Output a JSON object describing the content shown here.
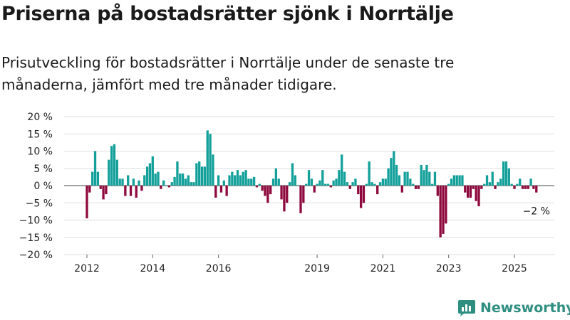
{
  "title": "Priserna på bostadsrätter sjönk i Norrtälje",
  "subtitle": "Prisutveckling för bostadsrätter i Norrtälje under de senaste tre månaderna, jämfört med tre månader tidigare.",
  "brand": {
    "name": "Newsworthy"
  },
  "colors": {
    "positive": "#13a09a",
    "negative": "#8e0a3e",
    "grid": "#dddddd",
    "brand": "#2e8e80"
  },
  "chart_data": {
    "type": "bar",
    "ylim": [
      -20,
      20
    ],
    "grid": true,
    "yticks": [
      {
        "value": 20,
        "label": "20 %"
      },
      {
        "value": 15,
        "label": "15 %"
      },
      {
        "value": 10,
        "label": "10 %"
      },
      {
        "value": 5,
        "label": "5 %"
      },
      {
        "value": 0,
        "label": "0 %"
      },
      {
        "value": -5,
        "label": "−5 %"
      },
      {
        "value": -10,
        "label": "−10 %"
      },
      {
        "value": -15,
        "label": "−15 %"
      },
      {
        "value": -20,
        "label": "−20 %"
      }
    ],
    "xticks": [
      {
        "value": 2012,
        "label": "2012"
      },
      {
        "value": 2014,
        "label": "2014"
      },
      {
        "value": 2016,
        "label": "2016"
      },
      {
        "value": 2019,
        "label": "2019"
      },
      {
        "value": 2021,
        "label": "2021"
      },
      {
        "value": 2023,
        "label": "2023"
      },
      {
        "value": 2025,
        "label": "2025"
      }
    ],
    "start": "2012-01",
    "interval": "month",
    "values": [
      -9.5,
      -2,
      4,
      10,
      4,
      -1,
      -4,
      -2.5,
      7.5,
      11.5,
      12,
      7.5,
      2,
      2,
      -3,
      3,
      -3,
      2,
      -3.5,
      1.5,
      -1.5,
      3,
      5.5,
      6.5,
      8.5,
      3.5,
      4,
      -1,
      1.5,
      0,
      -0.5,
      1,
      2.5,
      7,
      3.5,
      3.5,
      2,
      3,
      1,
      1,
      6.5,
      7,
      5.5,
      5.5,
      16,
      15,
      9,
      -3.5,
      3,
      -2,
      1.5,
      -3,
      3,
      4,
      3,
      4.5,
      3,
      4,
      4.5,
      2,
      2,
      2.5,
      -0.5,
      0.5,
      -1.5,
      -3,
      -5,
      -2.5,
      2,
      5,
      2,
      -4,
      -7.5,
      -5,
      1,
      6.5,
      3,
      0,
      -8,
      -5,
      0.5,
      4.5,
      2,
      -2,
      0.5,
      1.5,
      4.5,
      0.5,
      0.5,
      -0.5,
      1.5,
      2,
      4.5,
      9,
      4,
      1,
      -1,
      1,
      2,
      -2.5,
      -6.5,
      -5,
      0.5,
      7,
      1,
      0.5,
      -2.5,
      1,
      2,
      2,
      5,
      8,
      10,
      6,
      3,
      -2,
      4,
      4,
      2,
      0.5,
      -1,
      -1,
      6,
      4.5,
      6,
      4,
      0.5,
      4,
      -3,
      -15,
      -14,
      -11,
      0.5,
      2,
      3,
      3,
      3,
      3,
      -2,
      -3.5,
      -3.5,
      -1,
      -4.5,
      -6,
      -1,
      0.5,
      3,
      1,
      4,
      -1,
      1,
      2,
      7,
      7,
      5,
      0.5,
      -1,
      0.5,
      2,
      -1,
      -1,
      -1,
      2,
      -1,
      -2
    ],
    "annotation": {
      "label": "−2 %"
    }
  }
}
